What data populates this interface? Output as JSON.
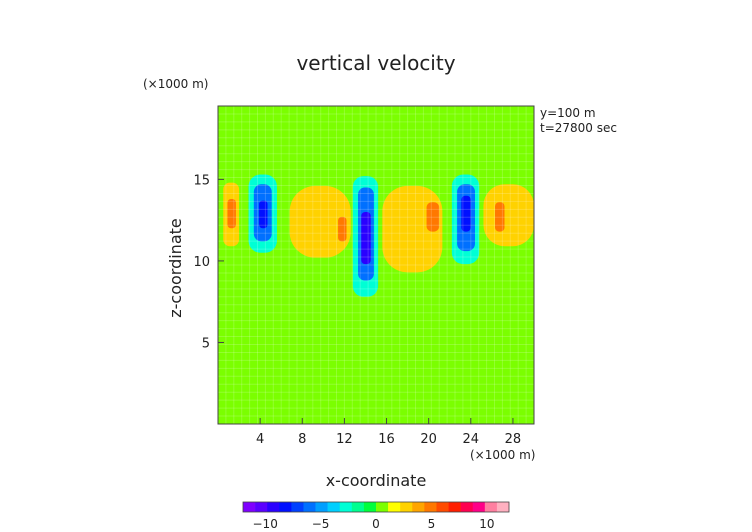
{
  "chart_data": {
    "type": "heatmap",
    "title": "vertical velocity",
    "xlabel": "x-coordinate",
    "ylabel": "z-coordinate",
    "x_unit": "(×1000 m)",
    "y_unit": "(×1000 m)",
    "annotations": [
      "y=100 m",
      "t=27800 sec"
    ],
    "xlim": [
      0,
      30
    ],
    "ylim": [
      0,
      19.5
    ],
    "x_ticks": [
      4,
      8,
      12,
      16,
      20,
      24,
      28
    ],
    "y_ticks": [
      5,
      10,
      15
    ],
    "grid": true,
    "colorbar": {
      "ticks": [
        -10,
        -5,
        0,
        5,
        10
      ],
      "range": [
        -12,
        12
      ],
      "colors": [
        "#7f00ff",
        "#5a00ff",
        "#2a00ff",
        "#0010ff",
        "#0040ff",
        "#0070ff",
        "#009fff",
        "#00cfff",
        "#00ffd5",
        "#00ff90",
        "#00ff3c",
        "#7bff00",
        "#ffff00",
        "#ffd200",
        "#ffa500",
        "#ff7800",
        "#ff4b00",
        "#ff1e00",
        "#ff0050",
        "#ff0088",
        "#ff7fa0",
        "#ffb0c0"
      ]
    },
    "cells": [
      {
        "x0": 0,
        "x1": 30,
        "y0": 0,
        "y1": 19.5,
        "value": 0.5
      },
      {
        "x0": 6.5,
        "x1": 21,
        "y0": 0,
        "y1": 9.5,
        "value": 0
      },
      {
        "x0": 0,
        "x1": 6,
        "y0": 0,
        "y1": 9.5,
        "value": 0.3
      },
      {
        "x0": 0,
        "x1": 30,
        "y0": 10.5,
        "y1": 16.2,
        "value": 0.6
      },
      {
        "x0": 0.5,
        "x1": 2,
        "y0": 10.9,
        "y1": 14.8,
        "value": 3.2
      },
      {
        "x0": 0.9,
        "x1": 1.7,
        "y0": 12,
        "y1": 13.8,
        "value": 5
      },
      {
        "x0": 2.9,
        "x1": 5.6,
        "y0": 10.5,
        "y1": 15.3,
        "value": -3
      },
      {
        "x0": 3.4,
        "x1": 5.1,
        "y0": 11.2,
        "y1": 14.7,
        "value": -6
      },
      {
        "x0": 3.9,
        "x1": 4.7,
        "y0": 12,
        "y1": 13.7,
        "value": -8.5
      },
      {
        "x0": 6.8,
        "x1": 12.6,
        "y0": 10.2,
        "y1": 14.6,
        "value": 3
      },
      {
        "x0": 11.4,
        "x1": 12.2,
        "y0": 11.2,
        "y1": 12.7,
        "value": 5
      },
      {
        "x0": 12.8,
        "x1": 15.2,
        "y0": 7.8,
        "y1": 15.2,
        "value": -3
      },
      {
        "x0": 13.3,
        "x1": 14.8,
        "y0": 8.8,
        "y1": 14.5,
        "value": -6
      },
      {
        "x0": 13.6,
        "x1": 14.5,
        "y0": 9.8,
        "y1": 13.0,
        "value": -9
      },
      {
        "x0": 15.6,
        "x1": 21.3,
        "y0": 9.3,
        "y1": 14.6,
        "value": 3
      },
      {
        "x0": 19.8,
        "x1": 21,
        "y0": 11.8,
        "y1": 13.6,
        "value": 5
      },
      {
        "x0": 22.2,
        "x1": 24.8,
        "y0": 9.8,
        "y1": 15.3,
        "value": -3
      },
      {
        "x0": 22.7,
        "x1": 24.4,
        "y0": 10.6,
        "y1": 14.7,
        "value": -6
      },
      {
        "x0": 23.1,
        "x1": 24.0,
        "y0": 11.8,
        "y1": 14.0,
        "value": -8.5
      },
      {
        "x0": 25.2,
        "x1": 30,
        "y0": 10.9,
        "y1": 14.7,
        "value": 3
      },
      {
        "x0": 26.3,
        "x1": 27.2,
        "y0": 11.8,
        "y1": 13.6,
        "value": 5
      }
    ]
  }
}
